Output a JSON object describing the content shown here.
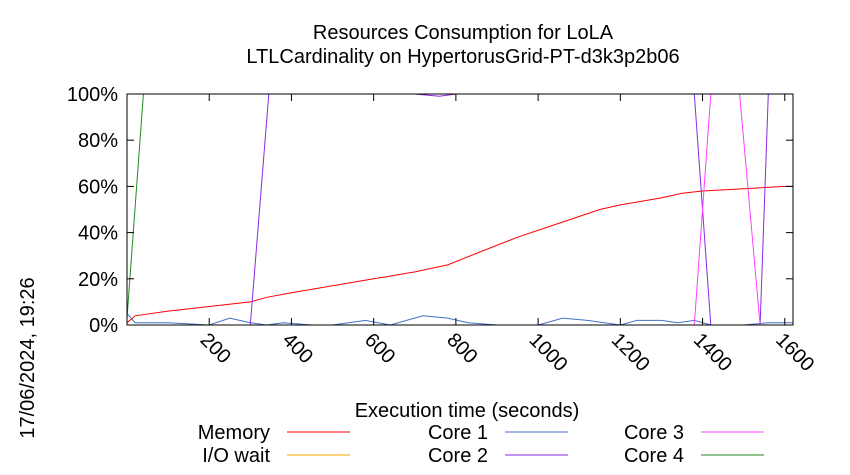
{
  "chart_data": {
    "type": "line",
    "title": "Resources Consumption for LoLA",
    "subtitle": "LTLCardinality on HypertorusGrid-PT-d3k3p2b06",
    "xlabel": "Execution time (seconds)",
    "ylabel": "",
    "timestamp": "17/06/2024, 19:26",
    "xlim": [
      0,
      1620
    ],
    "ylim": [
      0,
      100
    ],
    "x_ticks": [
      200,
      400,
      600,
      800,
      1000,
      1200,
      1400,
      1600
    ],
    "x_tick_labels": [
      "200",
      "400",
      "600",
      "800",
      "1000",
      "1200",
      "1400",
      "1600"
    ],
    "y_ticks": [
      0,
      20,
      40,
      60,
      80,
      100
    ],
    "y_tick_labels": [
      "0%",
      "20%",
      "40%",
      "60%",
      "80%",
      "100%"
    ],
    "grid": false,
    "legend_position": "bottom",
    "series": [
      {
        "name": "Memory",
        "color": "#ff0000",
        "points": [
          [
            0,
            1
          ],
          [
            20,
            4
          ],
          [
            100,
            6
          ],
          [
            200,
            8
          ],
          [
            300,
            10
          ],
          [
            340,
            12
          ],
          [
            400,
            14
          ],
          [
            500,
            17
          ],
          [
            600,
            20
          ],
          [
            700,
            23
          ],
          [
            780,
            26
          ],
          [
            850,
            31
          ],
          [
            950,
            38
          ],
          [
            1050,
            44
          ],
          [
            1150,
            50
          ],
          [
            1200,
            52
          ],
          [
            1300,
            55
          ],
          [
            1350,
            57
          ],
          [
            1400,
            58
          ],
          [
            1500,
            59
          ],
          [
            1600,
            60
          ],
          [
            1620,
            60
          ]
        ]
      },
      {
        "name": "I/O wait",
        "color": "#ffa500",
        "points": [
          [
            0,
            0
          ],
          [
            20,
            0
          ],
          [
            200,
            0
          ],
          [
            250,
            0
          ],
          [
            300,
            0
          ],
          [
            600,
            0
          ],
          [
            1000,
            0
          ],
          [
            1620,
            0
          ]
        ]
      },
      {
        "name": "Core 1",
        "color": "#4472c4",
        "points": [
          [
            0,
            5
          ],
          [
            20,
            1
          ],
          [
            60,
            1
          ],
          [
            100,
            1
          ],
          [
            200,
            0
          ],
          [
            250,
            3
          ],
          [
            300,
            1
          ],
          [
            340,
            0
          ],
          [
            380,
            1
          ],
          [
            450,
            0
          ],
          [
            500,
            0
          ],
          [
            580,
            2
          ],
          [
            640,
            0
          ],
          [
            720,
            4
          ],
          [
            780,
            3
          ],
          [
            830,
            1
          ],
          [
            900,
            0
          ],
          [
            1000,
            0
          ],
          [
            1060,
            3
          ],
          [
            1120,
            2
          ],
          [
            1200,
            0
          ],
          [
            1240,
            2
          ],
          [
            1300,
            2
          ],
          [
            1340,
            1
          ],
          [
            1380,
            2
          ],
          [
            1420,
            0
          ],
          [
            1500,
            0
          ],
          [
            1560,
            1
          ],
          [
            1620,
            1
          ]
        ]
      },
      {
        "name": "Core 2",
        "color": "#8a2be2",
        "points": [
          [
            0,
            0
          ],
          [
            20,
            0
          ],
          [
            100,
            0
          ],
          [
            200,
            0
          ],
          [
            300,
            0
          ],
          [
            345,
            100
          ],
          [
            400,
            100
          ],
          [
            700,
            100
          ],
          [
            760,
            99
          ],
          [
            800,
            100
          ],
          [
            1000,
            100
          ],
          [
            1200,
            100
          ],
          [
            1380,
            100
          ],
          [
            1420,
            0
          ],
          [
            1480,
            0
          ],
          [
            1540,
            0
          ],
          [
            1560,
            100
          ],
          [
            1620,
            100
          ]
        ]
      },
      {
        "name": "Core 3",
        "color": "#ff40ff",
        "points": [
          [
            0,
            0
          ],
          [
            200,
            0
          ],
          [
            400,
            0
          ],
          [
            800,
            0
          ],
          [
            1200,
            0
          ],
          [
            1380,
            0
          ],
          [
            1420,
            100
          ],
          [
            1490,
            100
          ],
          [
            1540,
            0
          ],
          [
            1560,
            0
          ],
          [
            1620,
            0
          ]
        ]
      },
      {
        "name": "Core 4",
        "color": "#228b22",
        "points": [
          [
            0,
            3
          ],
          [
            40,
            100
          ],
          [
            300,
            100
          ],
          [
            800,
            100
          ],
          [
            1200,
            100
          ],
          [
            1620,
            100
          ]
        ]
      }
    ]
  }
}
